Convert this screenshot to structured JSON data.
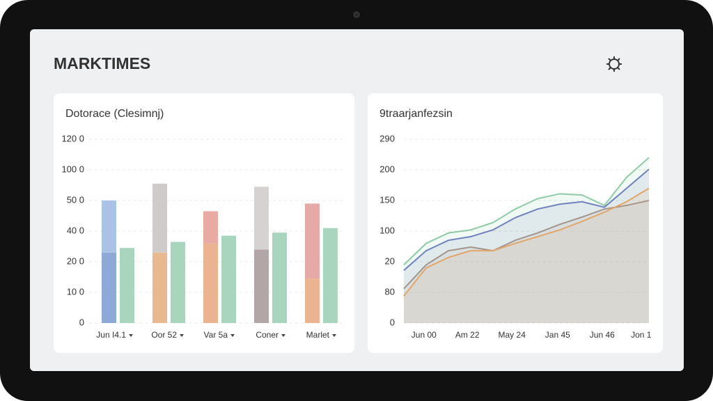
{
  "header": {
    "title": "MARKTIMES"
  },
  "chart_data": [
    {
      "type": "bar",
      "title": "Dotorace (Clesimnj)",
      "categories": [
        "Jun I4.1",
        "Oor 52",
        "Var 5a",
        "Coner",
        "Marlet"
      ],
      "series": [
        {
          "values": [
            46,
            46,
            52,
            48,
            29
          ],
          "colors": [
            "#8fa9d6",
            "#e8b98f",
            "#e9b48f",
            "#b3a6a6",
            "#e9b48f"
          ]
        },
        {
          "values": [
            34,
            45,
            21,
            41,
            49
          ],
          "colors": [
            "#a9c2e6",
            "#cfcbcb",
            "#e8aaa3",
            "#d6d2d2",
            "#e6aaa6"
          ]
        },
        {
          "values": [
            49,
            53,
            57,
            59,
            62
          ],
          "colors": [
            "#a9d4bd",
            "#a9d4bd",
            "#a9d4bd",
            "#a9d4bd",
            "#a9d4bd"
          ],
          "beside": true
        }
      ],
      "ylim": [
        0,
        120
      ],
      "yticks": [
        0,
        {
          "value": 20,
          "label": "10 0"
        },
        {
          "value": 40,
          "label": "20 0"
        },
        {
          "value": 60,
          "label": "40 0"
        },
        {
          "value": 80,
          "label": "50 0"
        },
        {
          "value": 100,
          "label": "100 0"
        },
        {
          "value": 120,
          "label": "120 0"
        }
      ],
      "grid": true
    },
    {
      "type": "line",
      "title": "9traarjanfezsin",
      "x": [
        0,
        1,
        2,
        3,
        4,
        5,
        6,
        7,
        8,
        9,
        10,
        11
      ],
      "xlim": [
        0,
        11
      ],
      "xticks": [
        {
          "value": 0.9,
          "label": "Jun 00"
        },
        {
          "value": 2.85,
          "label": "Am 22"
        },
        {
          "value": 4.85,
          "label": "May 24"
        },
        {
          "value": 6.9,
          "label": "Jan 45"
        },
        {
          "value": 8.9,
          "label": "Jun 46"
        },
        {
          "value": 10.65,
          "label": "Jon 1"
        }
      ],
      "ylim": [
        0,
        300
      ],
      "yticks": [
        0,
        {
          "value": 50,
          "label": "80"
        },
        {
          "value": 100,
          "label": "20"
        },
        {
          "value": 150,
          "label": "100"
        },
        {
          "value": 200,
          "label": "150"
        },
        {
          "value": 250,
          "label": "200"
        },
        {
          "value": 300,
          "label": "290"
        }
      ],
      "grid": true,
      "series": [
        {
          "color": "#8fcba6",
          "values": [
            95,
            130,
            147,
            152,
            164,
            186,
            203,
            211,
            209,
            192,
            238,
            270
          ]
        },
        {
          "color": "#6f80bf",
          "values": [
            86,
            118,
            135,
            141,
            152,
            172,
            186,
            194,
            198,
            189,
            220,
            251
          ]
        },
        {
          "color": "#a3948c",
          "values": [
            56,
            95,
            118,
            124,
            118,
            135,
            147,
            161,
            173,
            186,
            192,
            200
          ]
        },
        {
          "color": "#e3a567",
          "values": [
            44,
            90,
            107,
            118,
            118,
            130,
            141,
            152,
            166,
            181,
            198,
            220
          ]
        }
      ]
    }
  ]
}
